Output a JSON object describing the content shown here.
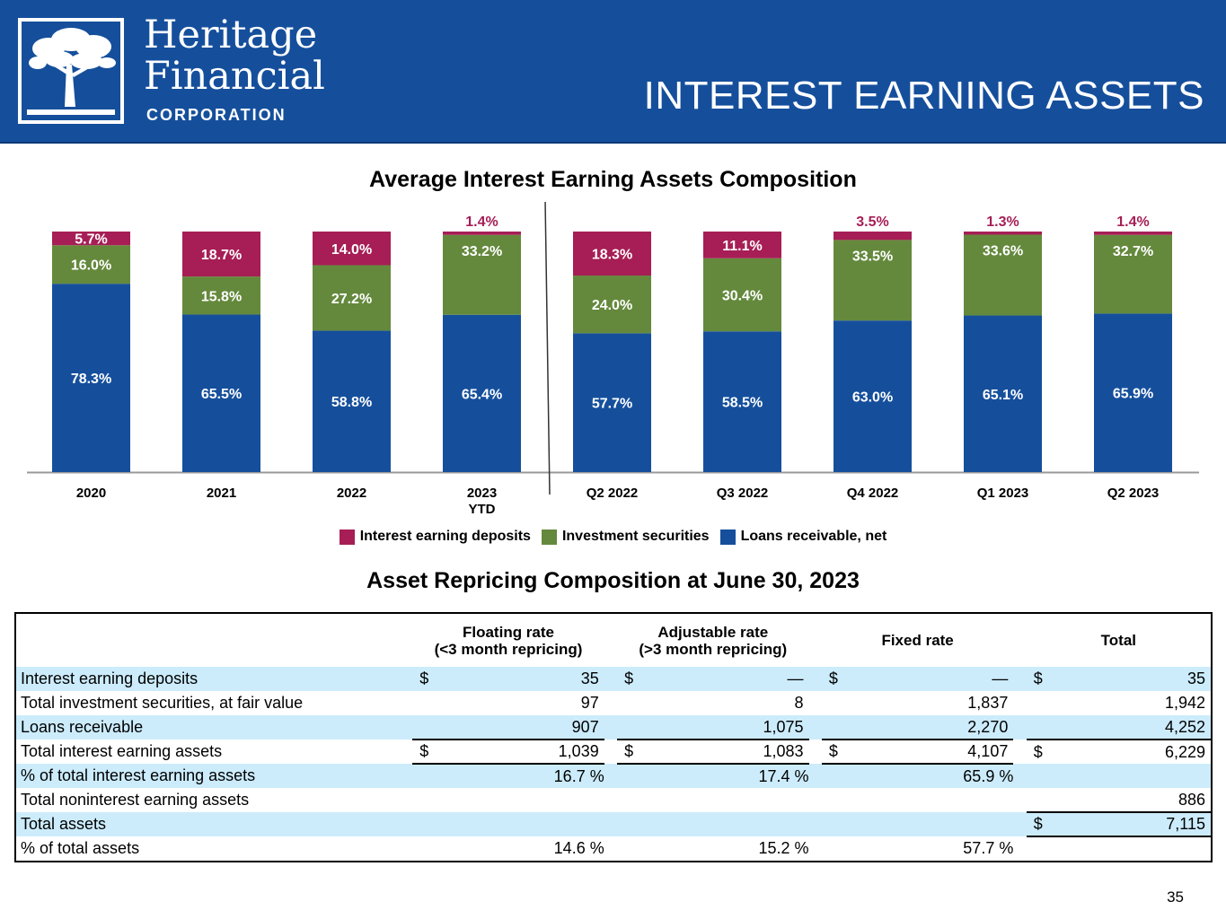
{
  "header": {
    "logo_line1": "Heritage",
    "logo_line2": "Financial",
    "logo_line3": "CORPORATION",
    "title": "INTEREST EARNING ASSETS",
    "background_color": "#154f9c"
  },
  "chart_section": {
    "title": "Average Interest Earning Assets Composition"
  },
  "chart_data": {
    "type": "bar",
    "stacked": true,
    "title": "Average Interest Earning Assets Composition",
    "categories": [
      "2020",
      "2021",
      "2022",
      "2023\nYTD",
      "Q2 2022",
      "Q3 2022",
      "Q4 2022",
      "Q1 2023",
      "Q2 2023"
    ],
    "series": [
      {
        "name": "Loans receivable, net",
        "color": "#154f9c",
        "values": [
          78.3,
          65.5,
          58.8,
          65.4,
          57.7,
          58.5,
          63.0,
          65.1,
          65.9
        ],
        "labels": [
          "78.3%",
          "65.5%",
          "58.8%",
          "65.4%",
          "57.7%",
          "58.5%",
          "63.0%",
          "65.1%",
          "65.9%"
        ]
      },
      {
        "name": "Investment securities",
        "color": "#64893c",
        "values": [
          16.0,
          15.8,
          27.2,
          33.2,
          24.0,
          30.4,
          33.5,
          33.6,
          32.7
        ],
        "labels": [
          "16.0%",
          "15.8%",
          "27.2%",
          "33.2%",
          "24.0%",
          "30.4%",
          "33.5%",
          "33.6%",
          "32.7%"
        ]
      },
      {
        "name": "Interest earning deposits",
        "color": "#a61e55",
        "values": [
          5.7,
          18.7,
          14.0,
          1.4,
          18.3,
          11.1,
          3.5,
          1.3,
          1.4
        ],
        "labels": [
          "5.7%",
          "18.7%",
          "14.0%",
          "1.4%",
          "18.3%",
          "11.1%",
          "3.5%",
          "1.3%",
          "1.4%"
        ]
      }
    ],
    "ylim": [
      0,
      100
    ],
    "xlabel": "",
    "ylabel": "",
    "legend": [
      "Interest earning deposits",
      "Investment securities",
      "Loans receivable, net"
    ],
    "legend_position": "bottom"
  },
  "table_section": {
    "title": "Asset Repricing Composition at June 30, 2023",
    "columns": [
      {
        "line1": "Floating rate",
        "line2": "(<3 month repricing)"
      },
      {
        "line1": "Adjustable rate",
        "line2": "(>3 month repricing)"
      },
      {
        "line1": "Fixed rate",
        "line2": ""
      },
      {
        "line1": "Total",
        "line2": ""
      }
    ],
    "rows": [
      {
        "label": "Interest earning deposits",
        "cur": [
          "$",
          "$",
          "$",
          "$"
        ],
        "vals": [
          "35",
          "—",
          "—",
          "35"
        ]
      },
      {
        "label": "Total investment securities, at fair value",
        "cur": [
          "",
          "",
          "",
          ""
        ],
        "vals": [
          "97",
          "8",
          "1,837",
          "1,942"
        ]
      },
      {
        "label": "Loans receivable",
        "cur": [
          "",
          "",
          "",
          ""
        ],
        "vals": [
          "907",
          "1,075",
          "2,270",
          "4,252"
        ]
      },
      {
        "label": "Total interest earning assets",
        "cur": [
          "$",
          "$",
          "$",
          "$"
        ],
        "vals": [
          "1,039",
          "1,083",
          "4,107",
          "6,229"
        ]
      },
      {
        "label": "% of total interest earning assets",
        "cur": [
          "",
          "",
          "",
          ""
        ],
        "vals": [
          "16.7 %",
          "17.4 %",
          "65.9 %",
          ""
        ]
      },
      {
        "label": "Total noninterest earning assets",
        "cur": [
          "",
          "",
          "",
          ""
        ],
        "vals": [
          "",
          "",
          "",
          "886"
        ]
      },
      {
        "label": "Total assets",
        "cur": [
          "",
          "",
          "",
          "$"
        ],
        "vals": [
          "",
          "",
          "",
          "7,115"
        ]
      },
      {
        "label": "% of total assets",
        "cur": [
          "",
          "",
          "",
          ""
        ],
        "vals": [
          "14.6 %",
          "15.2 %",
          "57.7 %",
          ""
        ]
      }
    ]
  },
  "page_number": "35"
}
